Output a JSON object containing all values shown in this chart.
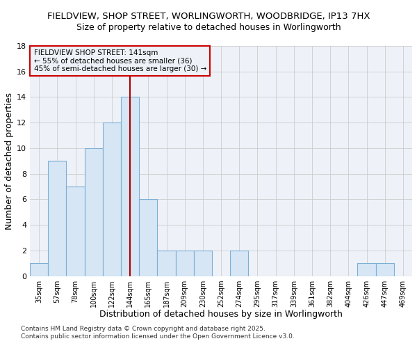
{
  "title_line1": "FIELDVIEW, SHOP STREET, WORLINGWORTH, WOODBRIDGE, IP13 7HX",
  "title_line2": "Size of property relative to detached houses in Worlingworth",
  "xlabel": "Distribution of detached houses by size in Worlingworth",
  "ylabel": "Number of detached properties",
  "categories": [
    "35sqm",
    "57sqm",
    "78sqm",
    "100sqm",
    "122sqm",
    "144sqm",
    "165sqm",
    "187sqm",
    "209sqm",
    "230sqm",
    "252sqm",
    "274sqm",
    "295sqm",
    "317sqm",
    "339sqm",
    "361sqm",
    "382sqm",
    "404sqm",
    "426sqm",
    "447sqm",
    "469sqm"
  ],
  "values": [
    1,
    9,
    7,
    10,
    12,
    14,
    6,
    2,
    2,
    2,
    0,
    2,
    0,
    0,
    0,
    0,
    0,
    0,
    1,
    1,
    0
  ],
  "bar_color": "#d6e6f5",
  "bar_edge_color": "#7bafd4",
  "highlight_index": 5,
  "highlight_line_color": "#aa0000",
  "ylim": [
    0,
    18
  ],
  "yticks": [
    0,
    2,
    4,
    6,
    8,
    10,
    12,
    14,
    16,
    18
  ],
  "annotation_title": "FIELDVIEW SHOP STREET: 141sqm",
  "annotation_line1": "← 55% of detached houses are smaller (36)",
  "annotation_line2": "45% of semi-detached houses are larger (30) →",
  "annotation_box_color": "#cc0000",
  "footer_line1": "Contains HM Land Registry data © Crown copyright and database right 2025.",
  "footer_line2": "Contains public sector information licensed under the Open Government Licence v3.0.",
  "fig_bg_color": "#ffffff",
  "plot_bg_color": "#eef2f8",
  "grid_color": "#cccccc",
  "title_fontsize": 9.5,
  "subtitle_fontsize": 9,
  "axis_label_fontsize": 9
}
